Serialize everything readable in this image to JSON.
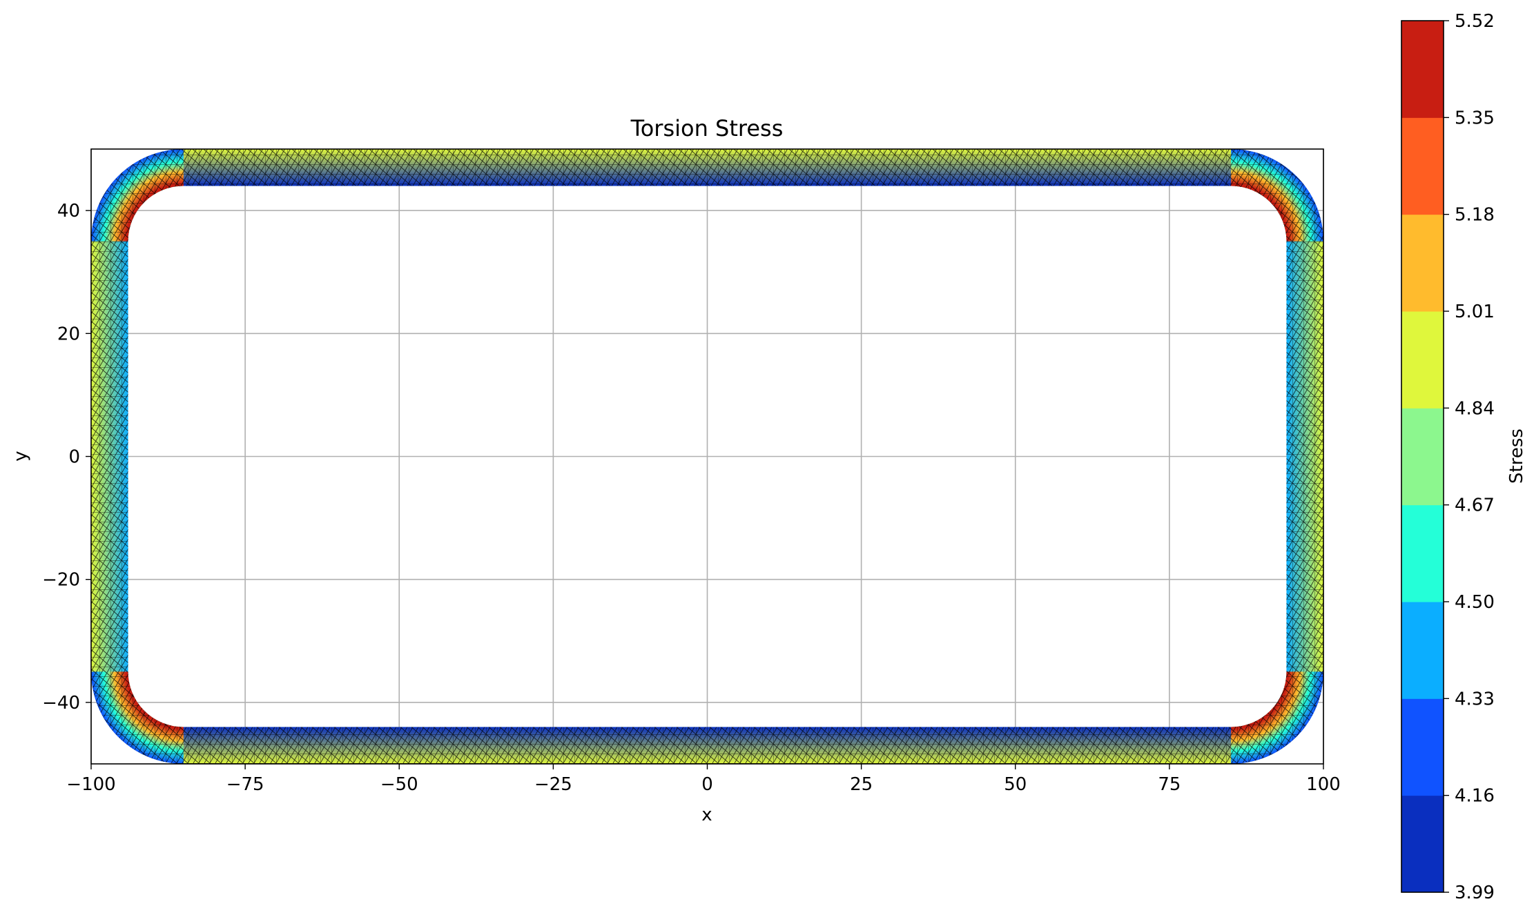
{
  "chart_data": [
    {
      "type": "heatmap",
      "subtype": "filled triangular-mesh contour of a rounded-rectangle tube section",
      "title": "Torsion Stress",
      "xlabel": "x",
      "ylabel": "y",
      "xlim": [
        -100,
        100
      ],
      "ylim": [
        -50,
        50
      ],
      "x_ticks": [
        -100,
        -75,
        -50,
        -25,
        0,
        25,
        50,
        75,
        100
      ],
      "x_tick_labels": [
        "−100",
        "−75",
        "−50",
        "−25",
        "0",
        "25",
        "50",
        "75",
        "100"
      ],
      "y_ticks": [
        -40,
        -20,
        0,
        20,
        40
      ],
      "y_tick_labels": [
        "−40",
        "−20",
        "0",
        "20",
        "40"
      ],
      "grid": true,
      "mesh_visible": true,
      "geometry": {
        "outer_half_width": 100,
        "outer_half_height": 50,
        "outer_corner_radius": 15,
        "inner_half_width": 94,
        "inner_half_height": 44,
        "inner_corner_radius": 9
      },
      "stress_distribution": [
        {
          "region": "top and bottom walls, inner edge",
          "stress": 4.1
        },
        {
          "region": "top and bottom walls, outer edge",
          "stress": 4.9
        },
        {
          "region": "left and right walls, inner edge",
          "stress": 4.4
        },
        {
          "region": "left and right walls, outer edge",
          "stress": 4.95
        },
        {
          "region": "inner corner fillets",
          "stress": 5.45
        },
        {
          "region": "outer corner fillets",
          "stress": 4.05
        }
      ],
      "colorbar": {
        "label": "Stress",
        "min": 3.99,
        "max": 5.52,
        "ticks": [
          3.99,
          4.16,
          4.33,
          4.5,
          4.67,
          4.84,
          5.01,
          5.18,
          5.35,
          5.52
        ],
        "tick_labels": [
          "3.99",
          "4.16",
          "4.33",
          "4.50",
          "4.67",
          "4.84",
          "5.01",
          "5.18",
          "5.35",
          "5.52"
        ],
        "colors": [
          "#0a2fbf",
          "#1053ff",
          "#0baeff",
          "#24ffd8",
          "#8cf78e",
          "#dff73c",
          "#ffbb2d",
          "#ff5e21",
          "#c81e12"
        ],
        "colormap": "jet"
      }
    }
  ]
}
